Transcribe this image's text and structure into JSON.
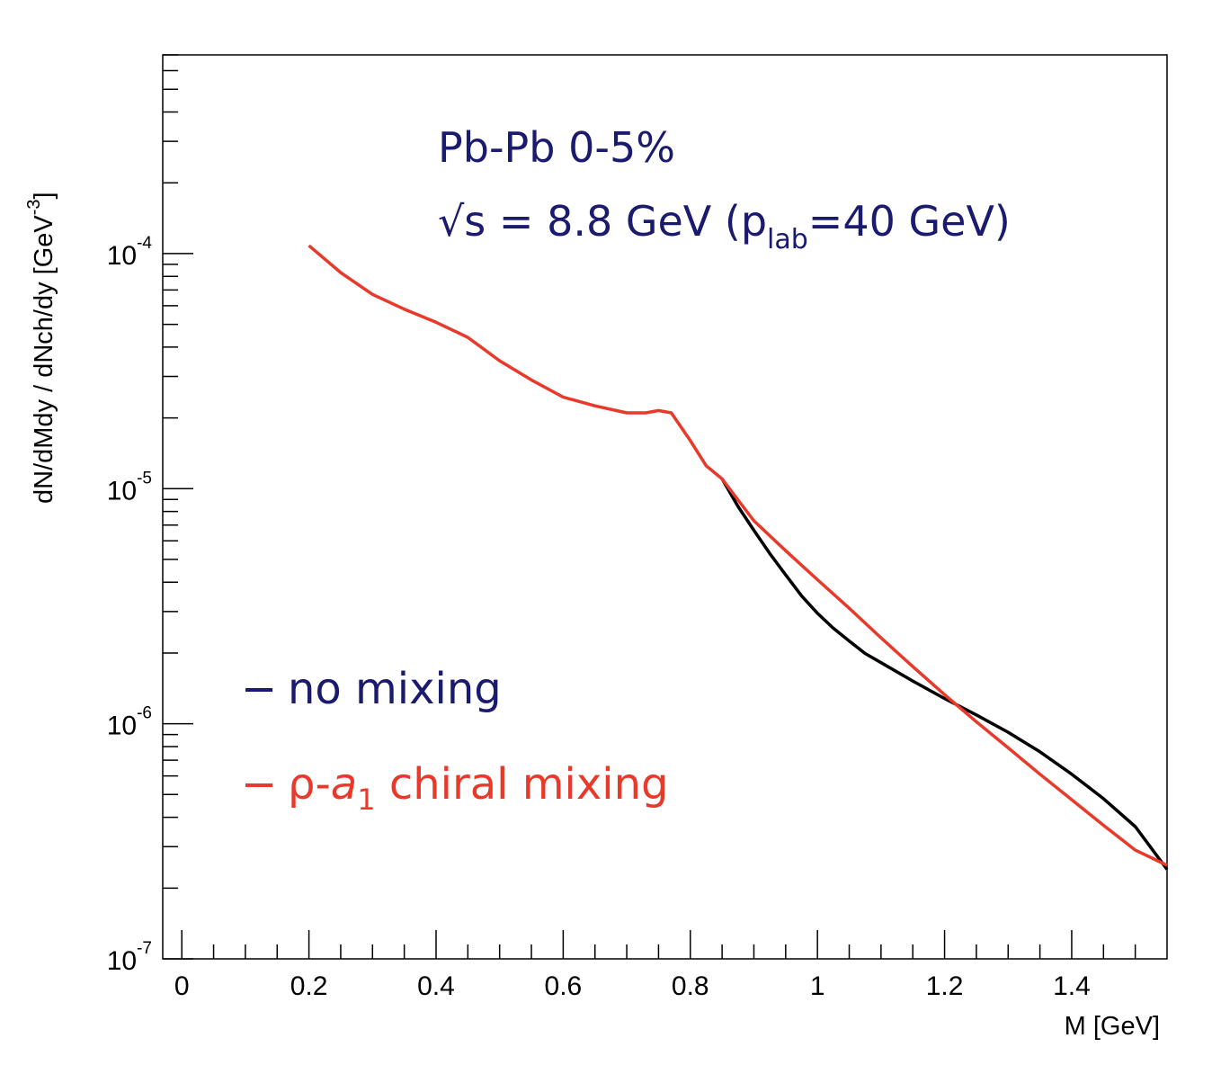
{
  "chart_data": {
    "type": "line",
    "title": "",
    "xlabel": "M [GeV]",
    "ylabel": "dN/dMdy / dNch/dy [GeV",
    "ylabel_sup": "-3",
    "ylabel_close": "]",
    "xlim": [
      -0.03,
      1.55
    ],
    "ylim": [
      1e-07,
      0.0007
    ],
    "yscale": "log",
    "grid": false,
    "x_ticks": [
      {
        "value": 0,
        "label": "0"
      },
      {
        "value": 0.2,
        "label": "0.2"
      },
      {
        "value": 0.4,
        "label": "0.4"
      },
      {
        "value": 0.6,
        "label": "0.6"
      },
      {
        "value": 0.8,
        "label": "0.8"
      },
      {
        "value": 1.0,
        "label": "1"
      },
      {
        "value": 1.2,
        "label": "1.2"
      },
      {
        "value": 1.4,
        "label": "1.4"
      }
    ],
    "y_ticks": [
      {
        "value": 1e-07,
        "base": "10",
        "exp": "-7"
      },
      {
        "value": 1e-06,
        "base": "10",
        "exp": "-6"
      },
      {
        "value": 1e-05,
        "base": "10",
        "exp": "-5"
      },
      {
        "value": 0.0001,
        "base": "10",
        "exp": "-4"
      }
    ],
    "annotation": {
      "line1": "Pb-Pb 0-5%",
      "line2_prefix": "√s = 8.8 GeV (p",
      "line2_sub": "lab",
      "line2_suffix": "=40 GeV)",
      "color": "#1a1a6e"
    },
    "legend": {
      "placement": "bottom-left",
      "entries": [
        {
          "dash": "−",
          "label": "no mixing",
          "color": "#1a1a6e"
        },
        {
          "dash": "−",
          "label_prefix": "ρ-",
          "label_italic": "a",
          "label_sub": "1",
          "label_suffix": " chiral mixing",
          "color": "#e8392b"
        }
      ]
    },
    "series": [
      {
        "name": "no mixing",
        "color": "#000000",
        "x": [
          0.85,
          0.875,
          0.9,
          0.925,
          0.95,
          0.975,
          1.0,
          1.025,
          1.05,
          1.075,
          1.1,
          1.15,
          1.2,
          1.25,
          1.3,
          1.35,
          1.4,
          1.45,
          1.5,
          1.55
        ],
        "y": [
          1.1e-05,
          8.4e-06,
          6.65e-06,
          5.3e-06,
          4.3e-06,
          3.5e-06,
          2.95e-06,
          2.55e-06,
          2.25e-06,
          1.99e-06,
          1.82e-06,
          1.52e-06,
          1.28e-06,
          1.09e-06,
          9.2e-07,
          7.6e-07,
          6.1e-07,
          4.8e-07,
          3.65e-07,
          2.4e-07
        ]
      },
      {
        "name": "ρ-a1 chiral mixing",
        "color": "#e8392b",
        "x": [
          0.2,
          0.25,
          0.3,
          0.35,
          0.4,
          0.45,
          0.5,
          0.55,
          0.6,
          0.65,
          0.7,
          0.73,
          0.75,
          0.77,
          0.8,
          0.825,
          0.85,
          0.9,
          0.95,
          1.0,
          1.05,
          1.1,
          1.15,
          1.2,
          1.25,
          1.3,
          1.35,
          1.4,
          1.45,
          1.5,
          1.55
        ],
        "y": [
          0.000108,
          8.3e-05,
          6.7e-05,
          5.8e-05,
          5.1e-05,
          4.4e-05,
          3.5e-05,
          2.9e-05,
          2.45e-05,
          2.25e-05,
          2.1e-05,
          2.1e-05,
          2.15e-05,
          2.1e-05,
          1.6e-05,
          1.25e-05,
          1.1e-05,
          7.3e-06,
          5.45e-06,
          4.1e-06,
          3.1e-06,
          2.32e-06,
          1.75e-06,
          1.33e-06,
          1.02e-06,
          7.9e-07,
          6.1e-07,
          4.75e-07,
          3.7e-07,
          2.9e-07,
          2.5e-07
        ]
      }
    ]
  }
}
